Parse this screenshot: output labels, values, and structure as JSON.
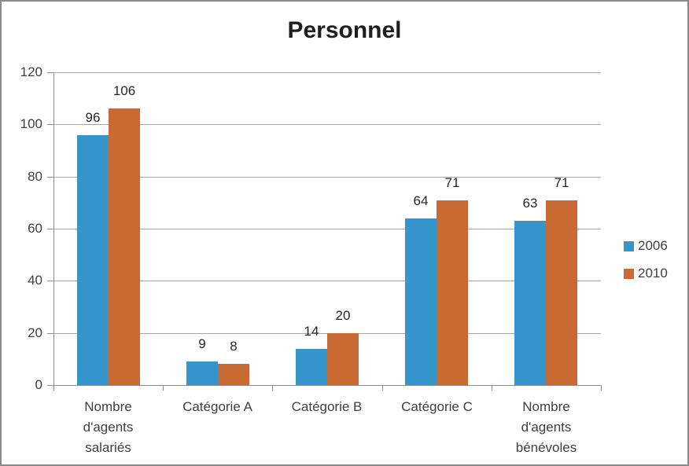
{
  "chart_data": {
    "type": "bar",
    "title": "Personnel",
    "categories": [
      "Nombre\nd'agents\nsalariés",
      "Catégorie A",
      "Catégorie B",
      "Catégorie C",
      "Nombre\nd'agents\nbénévoles"
    ],
    "series": [
      {
        "name": "2006",
        "color": "#3496CB",
        "values": [
          96,
          9,
          14,
          64,
          63
        ]
      },
      {
        "name": "2010",
        "color": "#C96A35",
        "values": [
          106,
          8,
          20,
          71,
          71
        ]
      }
    ],
    "xlabel": "",
    "ylabel": "",
    "ylim": [
      0,
      120
    ],
    "y_ticks": [
      0,
      20,
      40,
      60,
      80,
      100,
      120
    ],
    "grid": true,
    "legend_position": "right",
    "data_labels": true
  },
  "colors": {
    "series_2006": "#3496CB",
    "series_2010": "#C96A35",
    "gridline": "#A6A6A6",
    "axis": "#8C8C8C",
    "axis_text": "#3F3F3F",
    "data_label_text": "#262626",
    "title_text": "#1F1F1F",
    "frame_border": "#8A8A8A",
    "background": "#FFFFFF"
  }
}
